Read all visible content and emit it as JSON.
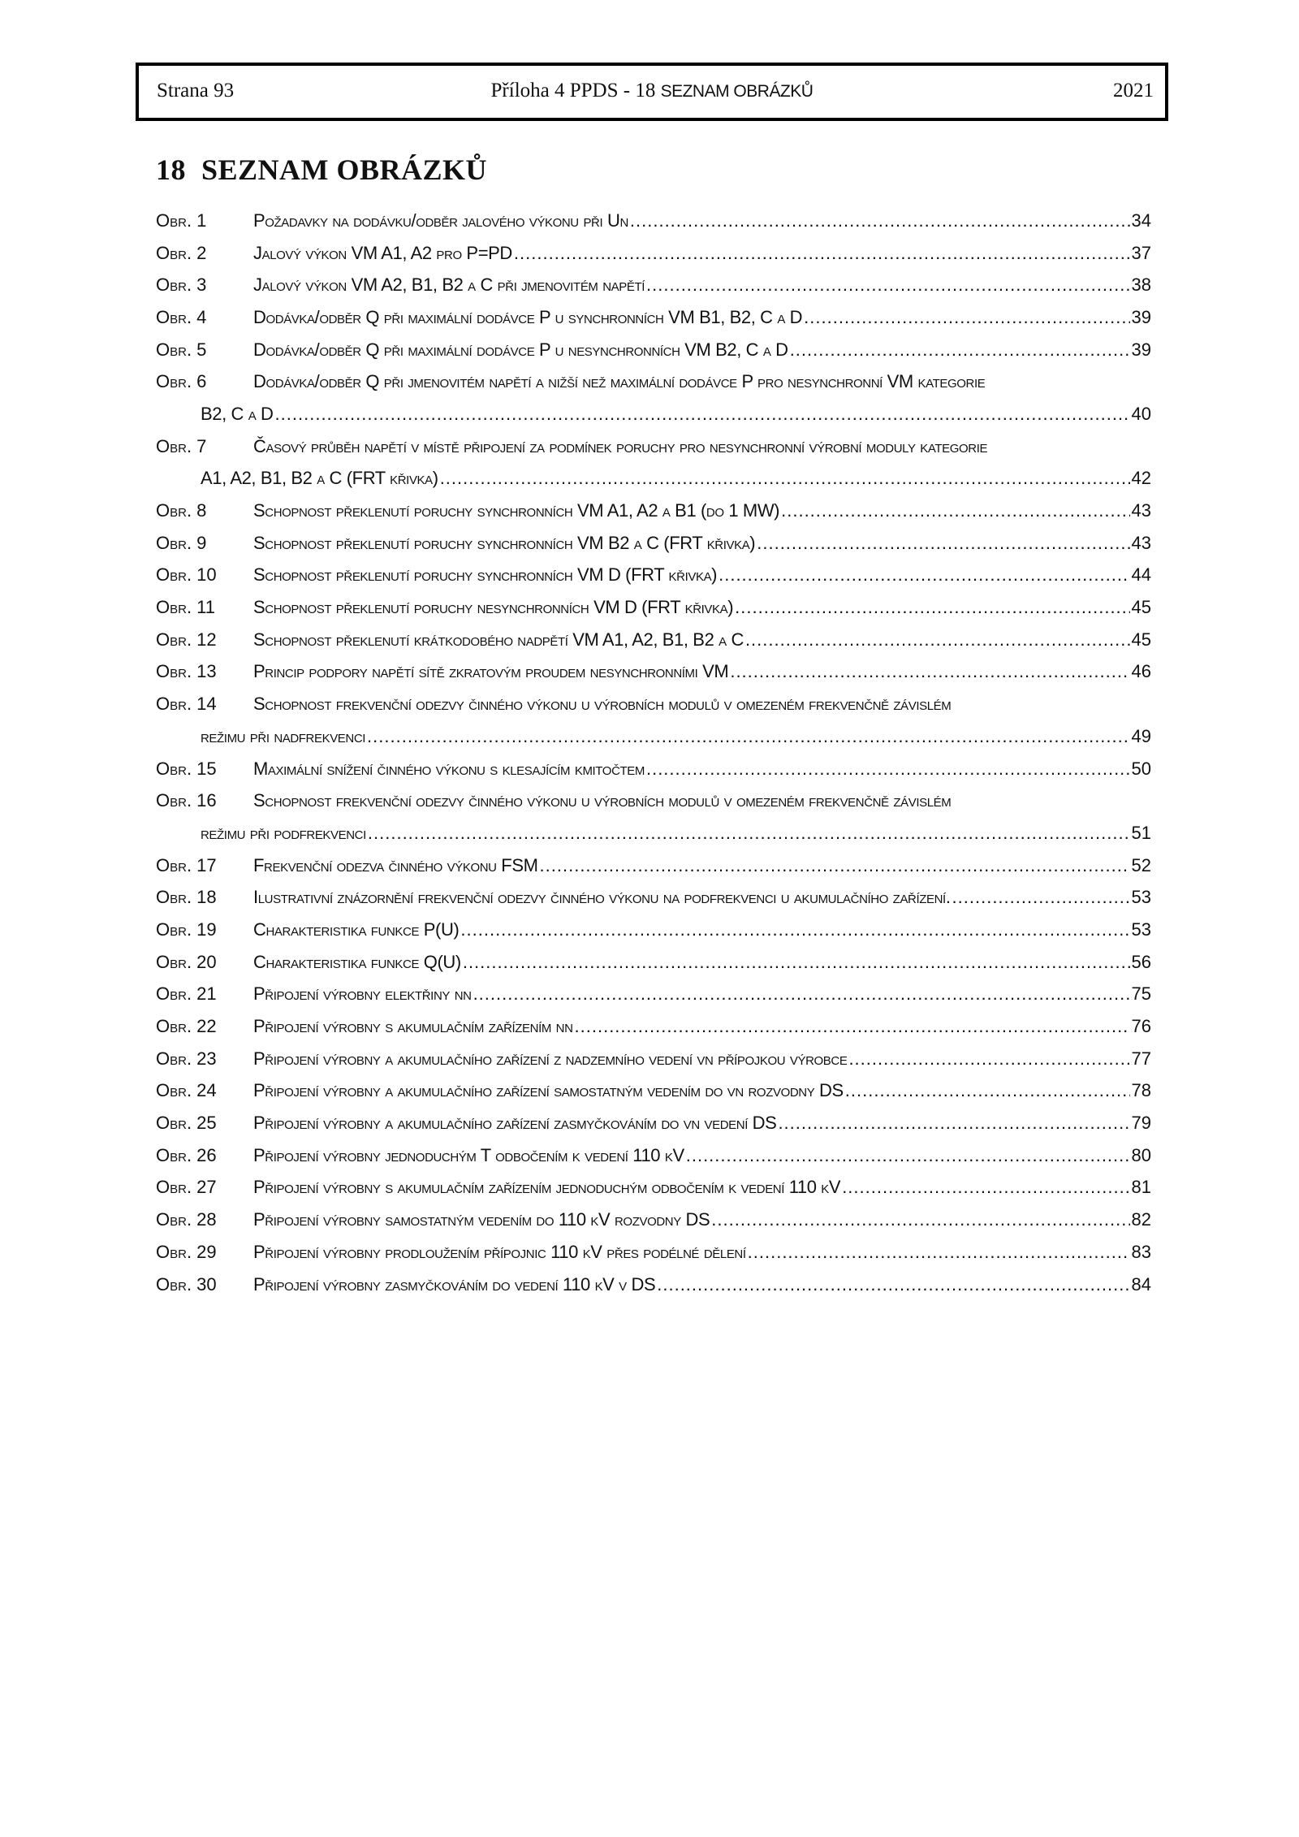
{
  "header": {
    "left": "Strana 93",
    "center_serif": "Příloha 4 PPDS - 18 ",
    "center_sans": "SEZNAM OBRÁZKŮ",
    "right": "2021"
  },
  "title": "18  SEZNAM OBRÁZKŮ",
  "entries": [
    {
      "label": "Obr. 1",
      "lines": [
        "Požadavky na dodávku/odběr jalového výkonu při Un"
      ],
      "page": "34"
    },
    {
      "label": "Obr. 2",
      "lines": [
        "Jalový výkon VM A1, A2 pro P=PD"
      ],
      "page": "37"
    },
    {
      "label": "Obr. 3",
      "lines": [
        "Jalový výkon VM A2, B1, B2 a C při jmenovitém napětí"
      ],
      "page": "38"
    },
    {
      "label": "Obr. 4",
      "lines": [
        "Dodávka/odběr Q při maximální dodávce P u synchronních VM B1, B2, C a D"
      ],
      "page": "39"
    },
    {
      "label": "Obr. 5",
      "lines": [
        "Dodávka/odběr Q při maximální dodávce P u nesynchronních VM B2, C a D"
      ],
      "page": "39"
    },
    {
      "label": "Obr. 6",
      "lines": [
        "Dodávka/odběr Q při jmenovitém napětí a nižší než maximální dodávce P pro  nesynchronní VM kategorie",
        "B2, C a D"
      ],
      "page": "40"
    },
    {
      "label": "Obr. 7",
      "lines": [
        "Časový průběh napětí v místě připojení za podmínek poruchy pro nesynchronní  výrobní moduly kategorie",
        "A1, A2, B1, B2 a C (FRT křivka)"
      ],
      "page": "42"
    },
    {
      "label": "Obr. 8",
      "lines": [
        "Schopnost překlenutí poruchy synchronních VM A1, A2 a B1 (do 1 MW)"
      ],
      "page": "43"
    },
    {
      "label": "Obr. 9",
      "lines": [
        "Schopnost překlenutí poruchy synchronních VM B2 a C (FRT křivka)"
      ],
      "page": "43"
    },
    {
      "label": "Obr. 10",
      "lines": [
        "Schopnost překlenutí poruchy synchronních VM D (FRT křivka)"
      ],
      "page": "44"
    },
    {
      "label": "Obr. 11",
      "lines": [
        "Schopnost překlenutí poruchy nesynchronních VM D (FRT křivka)"
      ],
      "page": "45"
    },
    {
      "label": "Obr. 12",
      "lines": [
        "Schopnost překlenutí krátkodobého nadpětí VM A1, A2, B1, B2 a C"
      ],
      "page": "45"
    },
    {
      "label": "Obr. 13",
      "lines": [
        "Princip podpory napětí sítě zkratovým proudem nesynchronními VM"
      ],
      "page": "46"
    },
    {
      "label": "Obr. 14",
      "lines": [
        "Schopnost frekvenční odezvy činného výkonu u výrobních modulů v omezeném  frekvenčně závislém",
        "režimu při nadfrekvenci"
      ],
      "page": "49"
    },
    {
      "label": "Obr. 15",
      "lines": [
        "Maximální snížení činného výkonu s klesajícím kmitočtem"
      ],
      "page": "50"
    },
    {
      "label": "Obr. 16",
      "lines": [
        "Schopnost frekvenční odezvy činného výkonu u výrobních modulů v omezeném  frekvenčně závislém",
        "režimu při podfrekvenci"
      ],
      "page": "51"
    },
    {
      "label": "Obr. 17",
      "lines": [
        "Frekvenční odezva činného výkonu FSM"
      ],
      "page": "52"
    },
    {
      "label": "Obr. 18",
      "lines": [
        "Ilustrativní znázornění frekvenční odezvy činného výkonu  na podfrekvenci u akumulačního zařízení."
      ],
      "page": "53"
    },
    {
      "label": "Obr. 19",
      "lines": [
        "Charakteristika funkce P(U)"
      ],
      "page": "53"
    },
    {
      "label": "Obr. 20",
      "lines": [
        "Charakteristika funkce Q(U)"
      ],
      "page": "56"
    },
    {
      "label": "Obr. 21",
      "lines": [
        "Připojení výrobny elektřiny nn"
      ],
      "page": "75"
    },
    {
      "label": "Obr. 22",
      "lines": [
        "Připojení výrobny s akumulačním zařízením nn"
      ],
      "page": "76"
    },
    {
      "label": "Obr. 23",
      "lines": [
        "Připojení výrobny a akumulačního zařízení z nadzemního vedení vn přípojkou výrobce"
      ],
      "page": "77"
    },
    {
      "label": "Obr. 24",
      "lines": [
        "Připojení výrobny a akumulačního zařízení samostatným vedením do vn rozvodny DS"
      ],
      "page": "78"
    },
    {
      "label": "Obr. 25",
      "lines": [
        "Připojení výrobny a akumulačního zařízení zasmyčkováním do vn vedení DS"
      ],
      "page": "79"
    },
    {
      "label": "Obr. 26",
      "lines": [
        "Připojení výrobny jednoduchým T odbočením k vedení 110 kV"
      ],
      "page": "80"
    },
    {
      "label": "Obr. 27",
      "lines": [
        "Připojení výrobny s akumulačním zařízením jednoduchým odbočením k vedení 110 kV"
      ],
      "page": "81"
    },
    {
      "label": "Obr. 28",
      "lines": [
        "Připojení výrobny samostatným vedením do 110 kV rozvodny DS"
      ],
      "page": "82"
    },
    {
      "label": "Obr. 29",
      "lines": [
        "Připojení výrobny prodloužením přípojnic 110 kV přes podélné dělení"
      ],
      "page": "83"
    },
    {
      "label": "Obr. 30",
      "lines": [
        "Připojení výrobny zasmyčkováním do vedení 110 kV v DS"
      ],
      "page": "84"
    }
  ]
}
